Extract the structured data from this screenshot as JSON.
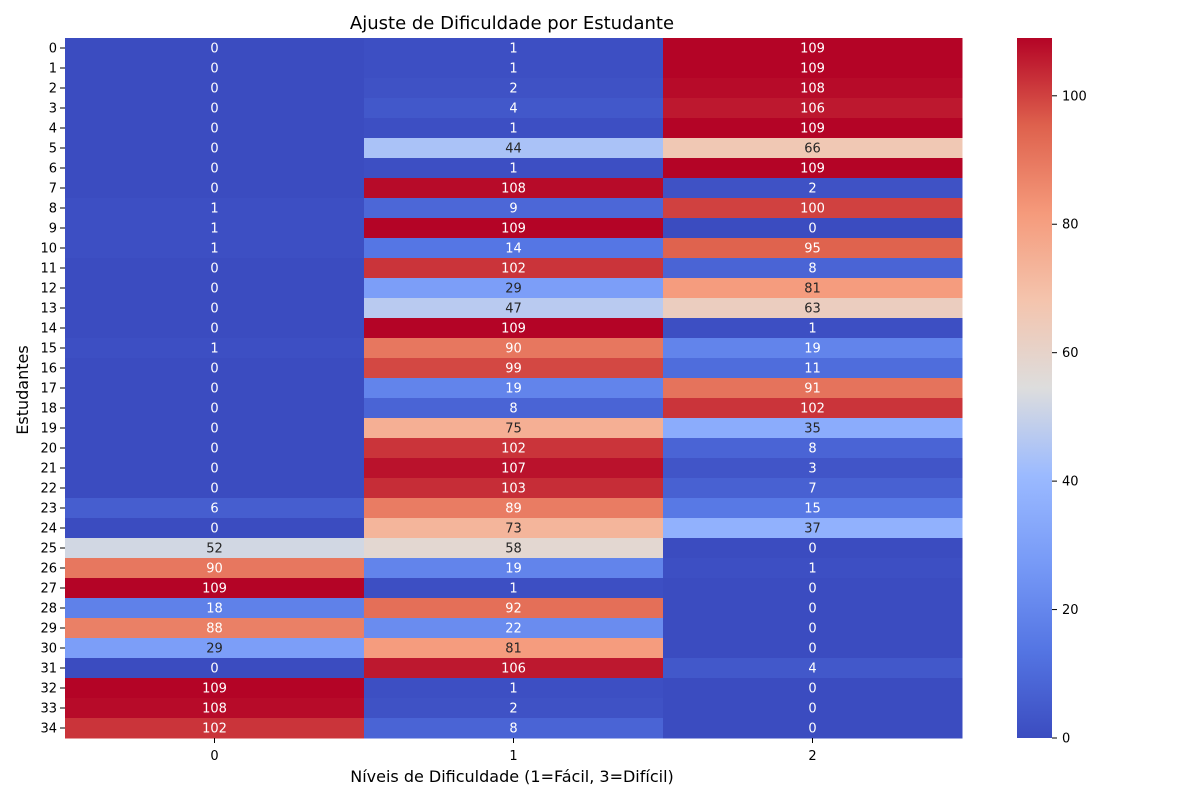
{
  "chart_data": {
    "type": "heatmap",
    "title": "Ajuste de Dificuldade por Estudante",
    "xlabel": "Níveis de Dificuldade (1=Fácil, 3=Difícil)",
    "ylabel": "Estudantes",
    "x_ticks": [
      "0",
      "1",
      "2"
    ],
    "y_ticks": [
      "0",
      "1",
      "2",
      "3",
      "4",
      "5",
      "6",
      "7",
      "8",
      "9",
      "10",
      "11",
      "12",
      "13",
      "14",
      "15",
      "16",
      "17",
      "18",
      "19",
      "20",
      "21",
      "22",
      "23",
      "24",
      "25",
      "26",
      "27",
      "28",
      "29",
      "30",
      "31",
      "32",
      "33",
      "34"
    ],
    "colormap": "coolwarm",
    "color_range": [
      0,
      109
    ],
    "colorbar_ticks": [
      "0",
      "20",
      "40",
      "60",
      "80",
      "100"
    ],
    "colorbar_tick_values": [
      0,
      20,
      40,
      60,
      80,
      100
    ],
    "values": [
      [
        0,
        1,
        109
      ],
      [
        0,
        1,
        109
      ],
      [
        0,
        2,
        108
      ],
      [
        0,
        4,
        106
      ],
      [
        0,
        1,
        109
      ],
      [
        0,
        44,
        66
      ],
      [
        0,
        1,
        109
      ],
      [
        0,
        108,
        2
      ],
      [
        1,
        9,
        100
      ],
      [
        1,
        109,
        0
      ],
      [
        1,
        14,
        95
      ],
      [
        0,
        102,
        8
      ],
      [
        0,
        29,
        81
      ],
      [
        0,
        47,
        63
      ],
      [
        0,
        109,
        1
      ],
      [
        1,
        90,
        19
      ],
      [
        0,
        99,
        11
      ],
      [
        0,
        19,
        91
      ],
      [
        0,
        8,
        102
      ],
      [
        0,
        75,
        35
      ],
      [
        0,
        102,
        8
      ],
      [
        0,
        107,
        3
      ],
      [
        0,
        103,
        7
      ],
      [
        6,
        89,
        15
      ],
      [
        0,
        73,
        37
      ],
      [
        52,
        58,
        0
      ],
      [
        90,
        19,
        1
      ],
      [
        109,
        1,
        0
      ],
      [
        18,
        92,
        0
      ],
      [
        88,
        22,
        0
      ],
      [
        29,
        81,
        0
      ],
      [
        0,
        106,
        4
      ],
      [
        109,
        1,
        0
      ],
      [
        108,
        2,
        0
      ],
      [
        102,
        8,
        0
      ]
    ]
  }
}
